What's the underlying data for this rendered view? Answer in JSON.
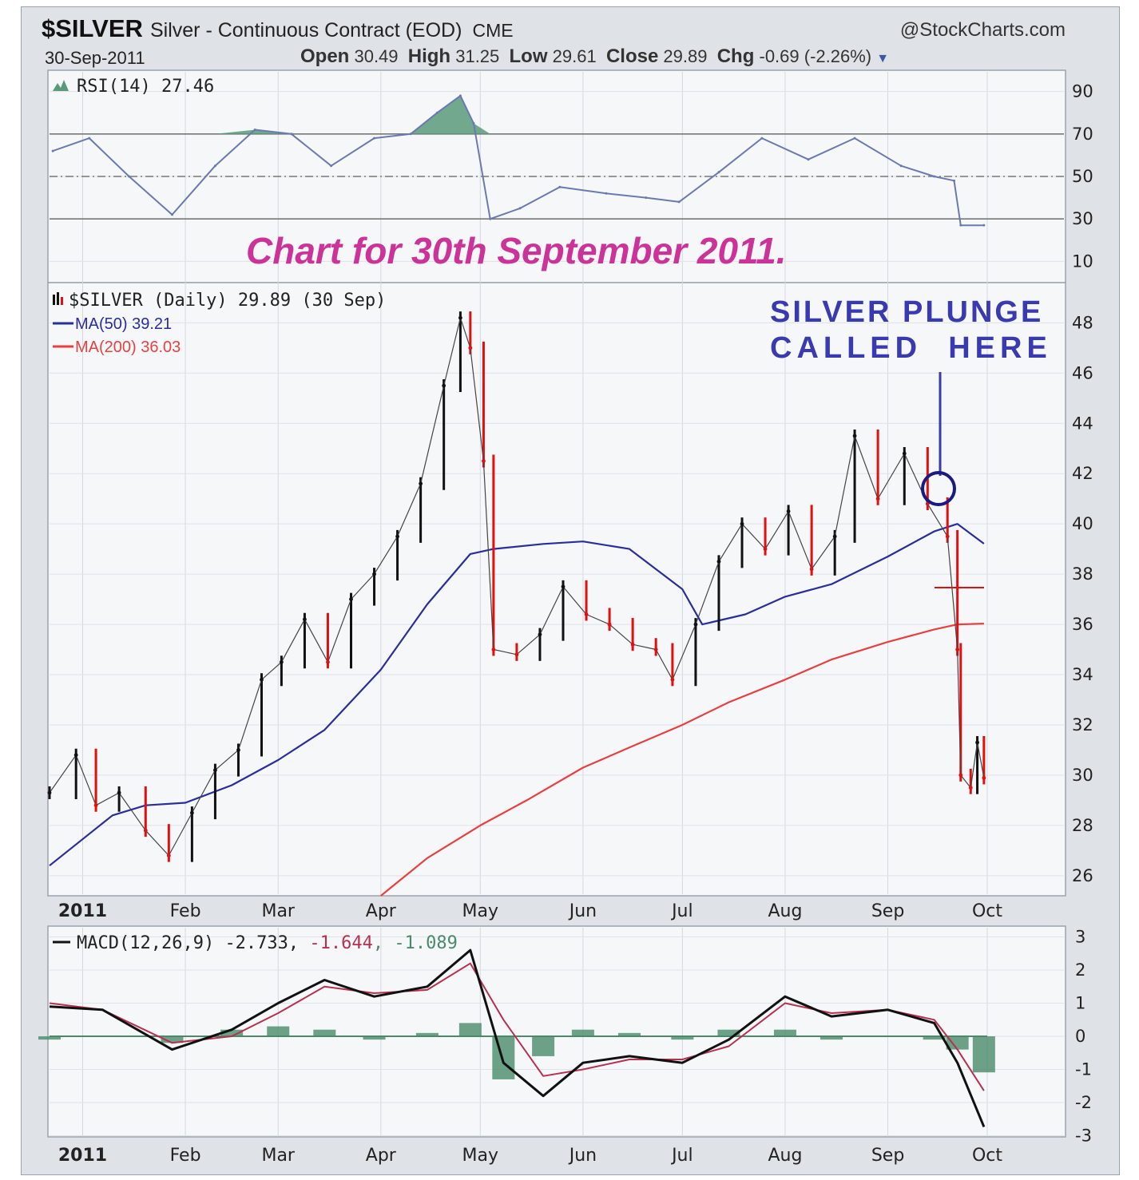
{
  "header": {
    "symbol": "$SILVER",
    "description": "Silver - Continuous Contract (EOD)",
    "exchange": "CME",
    "source": "@StockCharts.com",
    "date": "30-Sep-2011",
    "open_label": "Open",
    "open": "30.49",
    "high_label": "High",
    "high": "31.25",
    "low_label": "Low",
    "low": "29.61",
    "close_label": "Close",
    "close": "29.89",
    "chg_label": "Chg",
    "chg": "-0.69 (-2.26%)"
  },
  "annotations": {
    "chart_caption": "Chart for 30th September 2011.",
    "plunge_line1": "SILVER PLUNGE",
    "plunge_line2": "CALLED  HERE"
  },
  "colors": {
    "price_up": "#111111",
    "price_down": "#e01010",
    "ma50": "#2a2e9a",
    "ma200": "#e84040",
    "rsi": "#6a7ab0",
    "rsi_fill": "#5a9a7a",
    "macd": "#111111",
    "macd_signal": "#b83050",
    "histogram": "#4a8a6a",
    "caption": "#cc3399",
    "annotation": "#3a3ab0"
  },
  "chart_data": [
    {
      "type": "line",
      "name": "RSI panel",
      "legend": "RSI(14) 27.46",
      "ylim": [
        0,
        100
      ],
      "yticks": [
        10,
        30,
        50,
        70,
        90
      ],
      "reference_lines": [
        30,
        50,
        70
      ],
      "x_dates": [
        "2010-12-23",
        "2011-01-03",
        "2011-01-15",
        "2011-01-28",
        "2011-02-10",
        "2011-02-22",
        "2011-03-05",
        "2011-03-17",
        "2011-03-30",
        "2011-04-10",
        "2011-04-18",
        "2011-04-25",
        "2011-04-29",
        "2011-05-04",
        "2011-05-13",
        "2011-05-25",
        "2011-06-08",
        "2011-06-20",
        "2011-06-30",
        "2011-07-12",
        "2011-07-25",
        "2011-08-08",
        "2011-08-22",
        "2011-09-05",
        "2011-09-15",
        "2011-09-21",
        "2011-09-23",
        "2011-09-30"
      ],
      "values": [
        62,
        68,
        50,
        32,
        55,
        72,
        70,
        55,
        68,
        70,
        80,
        88,
        75,
        30,
        35,
        45,
        42,
        40,
        38,
        52,
        68,
        58,
        68,
        55,
        50,
        48,
        27,
        27
      ]
    },
    {
      "type": "line",
      "name": "Price panel",
      "legend": [
        "$SILVER (Daily) 29.89 (30 Sep)",
        "MA(50) 39.21",
        "MA(200) 36.03"
      ],
      "ylim": [
        25.2,
        49.6
      ],
      "yticks": [
        26,
        28,
        30,
        32,
        34,
        36,
        38,
        40,
        42,
        44,
        46,
        48,
        50
      ],
      "x_months": [
        "2011",
        "Feb",
        "Mar",
        "Apr",
        "May",
        "Jun",
        "Jul",
        "Aug",
        "Sep",
        "Oct"
      ],
      "series": [
        {
          "name": "$SILVER",
          "x": [
            "2010-12-22",
            "2010-12-30",
            "2011-01-05",
            "2011-01-12",
            "2011-01-20",
            "2011-01-27",
            "2011-02-03",
            "2011-02-10",
            "2011-02-17",
            "2011-02-24",
            "2011-03-02",
            "2011-03-09",
            "2011-03-16",
            "2011-03-23",
            "2011-03-30",
            "2011-04-06",
            "2011-04-13",
            "2011-04-20",
            "2011-04-25",
            "2011-04-28",
            "2011-05-02",
            "2011-05-05",
            "2011-05-12",
            "2011-05-19",
            "2011-05-26",
            "2011-06-02",
            "2011-06-09",
            "2011-06-16",
            "2011-06-23",
            "2011-06-28",
            "2011-07-05",
            "2011-07-12",
            "2011-07-19",
            "2011-07-26",
            "2011-08-02",
            "2011-08-09",
            "2011-08-16",
            "2011-08-22",
            "2011-08-29",
            "2011-09-06",
            "2011-09-13",
            "2011-09-19",
            "2011-09-22",
            "2011-09-23",
            "2011-09-26",
            "2011-09-28",
            "2011-09-30"
          ],
          "values": [
            29.3,
            30.8,
            28.8,
            29.3,
            27.8,
            26.8,
            28.5,
            30.2,
            31.0,
            33.8,
            34.5,
            36.2,
            34.5,
            37.0,
            38.0,
            39.5,
            41.6,
            45.5,
            48.2,
            47.0,
            42.5,
            35.0,
            34.8,
            35.6,
            37.5,
            36.4,
            36.0,
            35.2,
            35.0,
            33.8,
            36.0,
            38.5,
            40.0,
            39.0,
            40.5,
            38.2,
            39.5,
            43.5,
            41.0,
            42.8,
            40.8,
            39.5,
            35.0,
            30.0,
            29.5,
            31.3,
            29.89
          ]
        },
        {
          "name": "MA(50)",
          "x": [
            "2010-12-22",
            "2011-01-10",
            "2011-01-20",
            "2011-02-01",
            "2011-02-15",
            "2011-03-01",
            "2011-03-15",
            "2011-04-01",
            "2011-04-15",
            "2011-04-28",
            "2011-05-05",
            "2011-05-20",
            "2011-06-01",
            "2011-06-15",
            "2011-07-01",
            "2011-07-07",
            "2011-07-20",
            "2011-08-01",
            "2011-08-15",
            "2011-09-01",
            "2011-09-15",
            "2011-09-22",
            "2011-09-30"
          ],
          "values": [
            26.4,
            28.4,
            28.8,
            28.9,
            29.6,
            30.6,
            31.8,
            34.2,
            36.8,
            38.8,
            39.0,
            39.2,
            39.3,
            39.0,
            37.4,
            36.0,
            36.4,
            37.1,
            37.6,
            38.7,
            39.7,
            40.0,
            39.21
          ]
        },
        {
          "name": "MA(200)",
          "x": [
            "2011-04-01",
            "2011-04-15",
            "2011-05-01",
            "2011-05-15",
            "2011-06-01",
            "2011-06-15",
            "2011-07-01",
            "2011-07-15",
            "2011-08-01",
            "2011-08-15",
            "2011-09-01",
            "2011-09-15",
            "2011-09-22",
            "2011-09-30"
          ],
          "values": [
            25.2,
            26.7,
            28.0,
            29.0,
            30.3,
            31.1,
            32.0,
            32.9,
            33.8,
            34.6,
            35.3,
            35.8,
            36.0,
            36.03
          ]
        }
      ]
    },
    {
      "type": "line",
      "name": "MACD panel",
      "legend": [
        "MACD(12,26,9)",
        "-2.733",
        "-1.644",
        "-1.089"
      ],
      "ylim": [
        -3,
        3
      ],
      "yticks": [
        -3,
        -2,
        -1,
        0,
        1,
        2,
        3
      ],
      "x_months": [
        "2011",
        "Feb",
        "Mar",
        "Apr",
        "May",
        "Jun",
        "Jul",
        "Aug",
        "Sep",
        "Oct"
      ],
      "series": [
        {
          "name": "MACD",
          "x": [
            "2010-12-22",
            "2011-01-07",
            "2011-01-28",
            "2011-02-15",
            "2011-03-01",
            "2011-03-15",
            "2011-03-30",
            "2011-04-15",
            "2011-04-28",
            "2011-05-08",
            "2011-05-20",
            "2011-06-01",
            "2011-06-15",
            "2011-07-01",
            "2011-07-15",
            "2011-08-01",
            "2011-08-15",
            "2011-09-01",
            "2011-09-15",
            "2011-09-22",
            "2011-09-30"
          ],
          "values": [
            0.9,
            0.8,
            -0.4,
            0.2,
            1.0,
            1.7,
            1.2,
            1.5,
            2.6,
            -0.8,
            -1.8,
            -0.8,
            -0.6,
            -0.8,
            -0.1,
            1.2,
            0.6,
            0.8,
            0.4,
            -0.8,
            -2.733
          ]
        },
        {
          "name": "Signal",
          "x": [
            "2010-12-22",
            "2011-01-07",
            "2011-01-28",
            "2011-02-15",
            "2011-03-01",
            "2011-03-15",
            "2011-03-30",
            "2011-04-15",
            "2011-04-28",
            "2011-05-08",
            "2011-05-20",
            "2011-06-01",
            "2011-06-15",
            "2011-07-01",
            "2011-07-15",
            "2011-08-01",
            "2011-08-15",
            "2011-09-01",
            "2011-09-15",
            "2011-09-22",
            "2011-09-30"
          ],
          "values": [
            1.0,
            0.8,
            -0.2,
            0.0,
            0.7,
            1.5,
            1.3,
            1.4,
            2.2,
            0.5,
            -1.2,
            -1.0,
            -0.7,
            -0.7,
            -0.3,
            1.0,
            0.7,
            0.8,
            0.5,
            -0.4,
            -1.644
          ]
        },
        {
          "name": "Histogram",
          "x": [
            "2010-12-22",
            "2011-01-07",
            "2011-01-28",
            "2011-02-15",
            "2011-03-01",
            "2011-03-15",
            "2011-03-30",
            "2011-04-15",
            "2011-04-28",
            "2011-05-08",
            "2011-05-20",
            "2011-06-01",
            "2011-06-15",
            "2011-07-01",
            "2011-07-15",
            "2011-08-01",
            "2011-08-15",
            "2011-09-01",
            "2011-09-15",
            "2011-09-22",
            "2011-09-30"
          ],
          "values": [
            -0.1,
            0.0,
            -0.2,
            0.2,
            0.3,
            0.2,
            -0.1,
            0.1,
            0.4,
            -1.3,
            -0.6,
            0.2,
            0.1,
            -0.1,
            0.2,
            0.2,
            -0.1,
            0.0,
            -0.1,
            -0.4,
            -1.089
          ]
        }
      ]
    }
  ]
}
